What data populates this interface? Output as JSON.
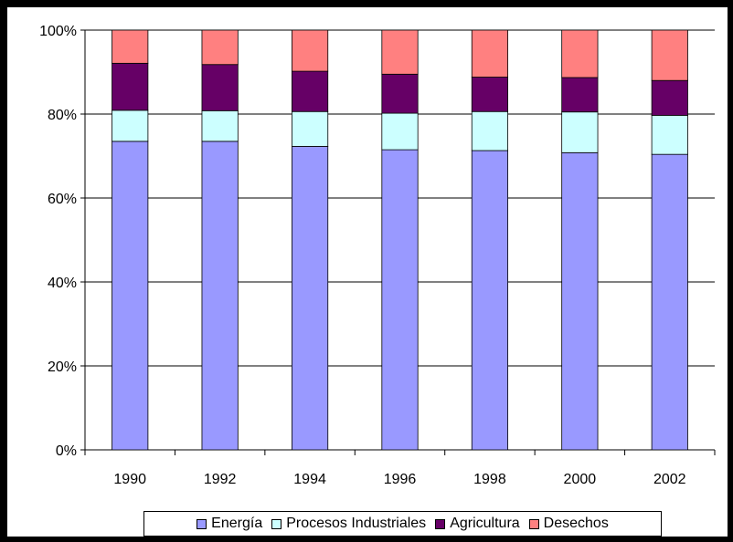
{
  "chart_data": {
    "type": "bar",
    "stacked": true,
    "categories": [
      "1990",
      "1992",
      "1994",
      "1996",
      "1998",
      "2000",
      "2002"
    ],
    "series": [
      {
        "name": "Energía",
        "color": "#9999ff",
        "values": [
          73.5,
          73.5,
          72.3,
          71.5,
          71.3,
          70.8,
          70.4
        ]
      },
      {
        "name": "Procesos Industriales",
        "color": "#ccffff",
        "values": [
          7.4,
          7.3,
          8.3,
          8.7,
          9.3,
          9.7,
          9.3
        ]
      },
      {
        "name": "Agricultura",
        "color": "#660066",
        "values": [
          11.2,
          11.0,
          9.6,
          9.3,
          8.2,
          8.2,
          8.3
        ]
      },
      {
        "name": "Desechos",
        "color": "#ff8080",
        "values": [
          7.9,
          8.2,
          9.8,
          10.5,
          11.2,
          11.3,
          12.0
        ]
      }
    ],
    "ylim": [
      0,
      100
    ],
    "yticks": [
      "0%",
      "20%",
      "40%",
      "60%",
      "80%",
      "100%"
    ],
    "ytick_values": [
      0,
      20,
      40,
      60,
      80,
      100
    ],
    "grid": true,
    "legend": "bottom"
  }
}
